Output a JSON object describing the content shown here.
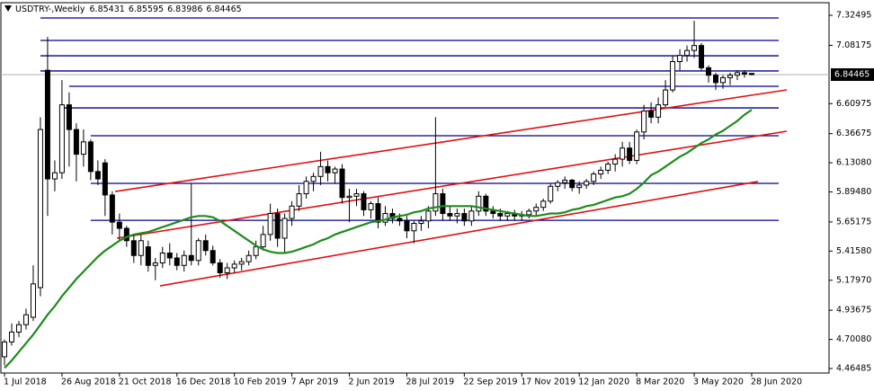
{
  "chart_data": {
    "type": "candlestick",
    "title": "USDTRY-,Weekly",
    "categories": [
      "1 Jul 2018",
      null,
      null,
      null,
      null,
      null,
      null,
      null,
      "26 Aug 2018",
      null,
      null,
      null,
      null,
      null,
      null,
      null,
      "21 Oct 2018",
      null,
      null,
      null,
      null,
      null,
      null,
      null,
      "16 Dec 2018",
      null,
      null,
      null,
      null,
      null,
      null,
      null,
      "10 Feb 2019",
      null,
      null,
      null,
      null,
      null,
      null,
      null,
      "7 Apr 2019",
      null,
      null,
      null,
      null,
      null,
      null,
      null,
      "2 Jun 2019",
      null,
      null,
      null,
      null,
      null,
      null,
      null,
      "28 Jul 2019",
      null,
      null,
      null,
      null,
      null,
      null,
      null,
      "22 Sep 2019",
      null,
      null,
      null,
      null,
      null,
      null,
      null,
      "17 Nov 2019",
      null,
      null,
      null,
      null,
      null,
      null,
      null,
      "12 Jan 2020",
      null,
      null,
      null,
      null,
      null,
      null,
      null,
      "8 Mar 2020",
      null,
      null,
      null,
      null,
      null,
      null,
      null,
      "3 May 2020",
      null,
      null,
      null,
      null,
      null,
      null,
      null,
      "28 Jun 2020"
    ],
    "open": [
      4.56,
      4.68,
      4.76,
      4.82,
      4.88,
      5.12,
      6.88,
      6.0,
      6.05,
      6.6,
      6.4,
      6.2,
      6.3,
      6.06,
      6.13,
      5.87,
      5.65,
      5.6,
      5.5,
      5.38,
      5.45,
      5.3,
      5.32,
      5.4,
      5.36,
      5.3,
      5.38,
      5.34,
      5.5,
      5.42,
      5.32,
      5.24,
      5.28,
      5.31,
      5.33,
      5.38,
      5.45,
      5.55,
      5.72,
      5.52,
      5.68,
      5.78,
      5.88,
      5.98,
      6.02,
      6.1,
      6.05,
      6.08,
      5.85,
      5.86,
      5.88,
      5.75,
      5.8,
      5.65,
      5.72,
      5.68,
      5.66,
      5.58,
      5.64,
      5.66,
      5.74,
      5.88,
      5.72,
      5.7,
      5.72,
      5.66,
      5.74,
      5.86,
      5.74,
      5.72,
      5.7,
      5.72,
      5.7,
      5.71,
      5.74,
      5.77,
      5.82,
      5.94,
      5.97,
      5.99,
      5.93,
      5.95,
      5.98,
      6.04,
      6.07,
      6.12,
      6.16,
      6.25,
      6.15,
      6.38,
      6.55,
      6.5,
      6.6,
      6.72,
      6.95,
      7.0,
      7.04,
      7.08,
      6.9,
      6.84,
      6.78,
      6.82,
      6.84,
      6.86,
      6.85431
    ],
    "high": [
      4.7,
      4.83,
      4.85,
      4.95,
      5.3,
      6.5,
      7.15,
      6.15,
      6.8,
      6.7,
      6.45,
      6.4,
      6.32,
      6.15,
      6.16,
      5.9,
      5.72,
      5.62,
      5.55,
      5.55,
      5.5,
      5.36,
      5.45,
      5.48,
      5.4,
      5.42,
      5.96,
      5.52,
      5.55,
      5.46,
      5.35,
      5.32,
      5.34,
      5.36,
      5.42,
      5.5,
      5.62,
      5.8,
      5.76,
      5.72,
      5.82,
      5.95,
      6.02,
      6.05,
      6.22,
      6.15,
      6.1,
      6.12,
      5.92,
      5.92,
      5.9,
      5.82,
      5.85,
      5.78,
      5.76,
      5.72,
      5.7,
      5.66,
      5.7,
      5.78,
      6.5,
      5.92,
      5.78,
      5.76,
      5.76,
      5.78,
      5.9,
      5.88,
      5.78,
      5.76,
      5.74,
      5.75,
      5.74,
      5.76,
      5.8,
      5.84,
      5.96,
      5.99,
      6.02,
      6.0,
      5.98,
      6.0,
      6.06,
      6.1,
      6.14,
      6.2,
      6.3,
      6.3,
      6.4,
      6.6,
      6.62,
      6.66,
      6.8,
      7.0,
      7.05,
      7.08,
      7.28,
      7.1,
      6.92,
      6.86,
      6.84,
      6.86,
      6.88,
      6.88,
      6.85595
    ],
    "low": [
      4.49,
      4.65,
      4.72,
      4.78,
      4.85,
      5.05,
      5.7,
      5.9,
      6.0,
      6.1,
      5.98,
      6.1,
      5.99,
      5.95,
      5.7,
      5.55,
      5.5,
      5.45,
      5.32,
      5.3,
      5.25,
      5.18,
      5.28,
      5.3,
      5.26,
      5.25,
      5.3,
      5.3,
      5.38,
      5.3,
      5.2,
      5.19,
      5.24,
      5.26,
      5.3,
      5.35,
      5.42,
      5.5,
      5.45,
      5.4,
      5.62,
      5.74,
      5.84,
      5.9,
      5.95,
      5.98,
      5.96,
      5.8,
      5.65,
      5.78,
      5.7,
      5.68,
      5.6,
      5.62,
      5.64,
      5.62,
      5.52,
      5.48,
      5.58,
      5.6,
      5.7,
      5.66,
      5.66,
      5.64,
      5.62,
      5.62,
      5.7,
      5.7,
      5.68,
      5.66,
      5.66,
      5.66,
      5.66,
      5.68,
      5.7,
      5.74,
      5.8,
      5.9,
      5.92,
      5.9,
      5.88,
      5.92,
      5.95,
      6.0,
      6.04,
      6.06,
      6.1,
      6.12,
      6.12,
      6.32,
      6.45,
      6.45,
      6.58,
      6.7,
      6.88,
      6.95,
      6.98,
      6.88,
      6.78,
      6.72,
      6.73,
      6.76,
      6.8,
      6.82,
      6.83986
    ],
    "close": [
      4.68,
      4.76,
      4.82,
      4.9,
      5.15,
      6.4,
      6.0,
      6.05,
      6.6,
      6.4,
      6.2,
      6.3,
      6.06,
      6.0,
      5.87,
      5.65,
      5.6,
      5.5,
      5.38,
      5.5,
      5.3,
      5.32,
      5.4,
      5.36,
      5.3,
      5.38,
      5.34,
      5.5,
      5.42,
      5.32,
      5.24,
      5.28,
      5.31,
      5.33,
      5.38,
      5.45,
      5.55,
      5.72,
      5.52,
      5.68,
      5.78,
      5.88,
      5.98,
      6.02,
      6.1,
      6.05,
      6.08,
      5.85,
      5.86,
      5.88,
      5.75,
      5.8,
      5.65,
      5.72,
      5.68,
      5.66,
      5.58,
      5.64,
      5.66,
      5.74,
      5.88,
      5.72,
      5.7,
      5.72,
      5.66,
      5.74,
      5.86,
      5.74,
      5.72,
      5.7,
      5.72,
      5.7,
      5.71,
      5.74,
      5.77,
      5.82,
      5.94,
      5.97,
      5.99,
      5.93,
      5.95,
      5.98,
      6.04,
      6.07,
      6.12,
      6.16,
      6.25,
      6.15,
      6.38,
      6.55,
      6.5,
      6.6,
      6.72,
      6.95,
      7.0,
      7.04,
      7.08,
      6.9,
      6.84,
      6.78,
      6.82,
      6.84,
      6.86,
      6.85,
      6.84465
    ],
    "ma": {
      "color": "#1e8c1e",
      "values": [
        4.47,
        4.53,
        4.6,
        4.67,
        4.74,
        4.82,
        4.9,
        4.97,
        5.05,
        5.12,
        5.19,
        5.25,
        5.31,
        5.37,
        5.42,
        5.46,
        5.5,
        5.53,
        5.55,
        5.56,
        5.57,
        5.59,
        5.61,
        5.63,
        5.65,
        5.67,
        5.69,
        5.7,
        5.7,
        5.69,
        5.66,
        5.62,
        5.58,
        5.54,
        5.5,
        5.46,
        5.43,
        5.41,
        5.4,
        5.4,
        5.41,
        5.43,
        5.45,
        5.47,
        5.5,
        5.52,
        5.55,
        5.57,
        5.59,
        5.61,
        5.63,
        5.65,
        5.66,
        5.67,
        5.69,
        5.7,
        5.71,
        5.73,
        5.74,
        5.76,
        5.77,
        5.78,
        5.78,
        5.78,
        5.78,
        5.78,
        5.77,
        5.76,
        5.75,
        5.74,
        5.73,
        5.72,
        5.71,
        5.7,
        5.7,
        5.71,
        5.72,
        5.72,
        5.73,
        5.75,
        5.76,
        5.78,
        5.79,
        5.81,
        5.83,
        5.85,
        5.86,
        5.88,
        5.92,
        5.97,
        6.03,
        6.06,
        6.1,
        6.14,
        6.18,
        6.21,
        6.25,
        6.29,
        6.32,
        6.36,
        6.39,
        6.43,
        6.47,
        6.52,
        6.56
      ]
    },
    "levels": {
      "color": "#00008b",
      "values": [
        7.303,
        7.121,
        6.997,
        6.874,
        6.75,
        6.575,
        6.35,
        5.964,
        5.665
      ]
    },
    "trendlines": {
      "color": "#e01010",
      "values": [
        [
          5.898,
          6.721
        ],
        [
          5.52,
          6.386
        ],
        [
          5.134,
          5.979
        ]
      ]
    },
    "up_color": "#ffffff",
    "down_color": "#000000",
    "ylim": [
      4.4285,
      7.4268
    ],
    "yticks": [
      4.46485,
      {
        "value": 4.7008,
        "label": "4.70080"
      },
      4.93675,
      {
        "value": 5.1797,
        "label": "5.17970"
      },
      {
        "value": 5.4158,
        "label": "5.41580"
      },
      5.65175,
      {
        "value": 5.8948,
        "label": "5.89480"
      },
      {
        "value": 6.1308,
        "label": "6.13080"
      },
      6.36675,
      6.60975,
      7.08175,
      7.32495
    ]
  }
}
